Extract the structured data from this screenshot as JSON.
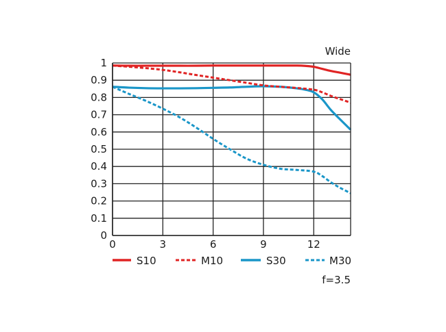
{
  "chart_data": {
    "type": "line",
    "title": "Wide",
    "note": "f=3.5",
    "xlabel": "",
    "ylabel": "",
    "xlim": [
      0,
      14.2
    ],
    "ylim": [
      0,
      1
    ],
    "x_ticks": [
      0,
      3,
      6,
      9,
      12
    ],
    "y_ticks": [
      0,
      0.1,
      0.2,
      0.3,
      0.4,
      0.5,
      0.6,
      0.7,
      0.8,
      0.9,
      1
    ],
    "y_tick_labels": [
      "0",
      "0.1",
      "0.2",
      "0.3",
      "0.4",
      "0.5",
      "0.6",
      "0.7",
      "0.8",
      "0.9",
      "1"
    ],
    "grid": true,
    "legend_position": "bottom",
    "series": [
      {
        "name": "S10",
        "color": "#e02424",
        "style": "solid",
        "x": [
          0,
          1,
          2,
          3,
          4,
          5,
          6,
          7,
          8,
          9,
          10,
          11,
          11.5,
          12,
          12.5,
          13,
          13.5,
          14.2
        ],
        "y": [
          0.985,
          0.984,
          0.984,
          0.984,
          0.984,
          0.984,
          0.985,
          0.985,
          0.985,
          0.985,
          0.985,
          0.985,
          0.983,
          0.978,
          0.966,
          0.954,
          0.945,
          0.932
        ]
      },
      {
        "name": "M10",
        "color": "#e02424",
        "style": "dashed",
        "x": [
          0,
          1,
          2,
          3,
          4,
          5,
          6,
          7,
          8,
          9,
          10,
          11,
          12,
          12.5,
          13,
          13.5,
          14.2
        ],
        "y": [
          0.985,
          0.978,
          0.97,
          0.96,
          0.946,
          0.93,
          0.915,
          0.9,
          0.885,
          0.87,
          0.862,
          0.855,
          0.845,
          0.83,
          0.81,
          0.793,
          0.77
        ]
      },
      {
        "name": "S30",
        "color": "#1a96c8",
        "style": "solid",
        "x": [
          0,
          1,
          2,
          3,
          4,
          5,
          6,
          7,
          8,
          9,
          10,
          11,
          11.5,
          12,
          12.5,
          13,
          13.5,
          14.2
        ],
        "y": [
          0.862,
          0.857,
          0.854,
          0.853,
          0.853,
          0.854,
          0.856,
          0.858,
          0.862,
          0.865,
          0.862,
          0.853,
          0.845,
          0.83,
          0.79,
          0.73,
          0.68,
          0.613
        ]
      },
      {
        "name": "M30",
        "color": "#1a96c8",
        "style": "dashed",
        "x": [
          0,
          1,
          2,
          3,
          4,
          5,
          6,
          7,
          8,
          9,
          10,
          11,
          12,
          12.5,
          13,
          13.5,
          14.2
        ],
        "y": [
          0.862,
          0.82,
          0.78,
          0.735,
          0.685,
          0.625,
          0.56,
          0.5,
          0.445,
          0.41,
          0.387,
          0.38,
          0.37,
          0.345,
          0.31,
          0.28,
          0.245
        ]
      }
    ]
  }
}
